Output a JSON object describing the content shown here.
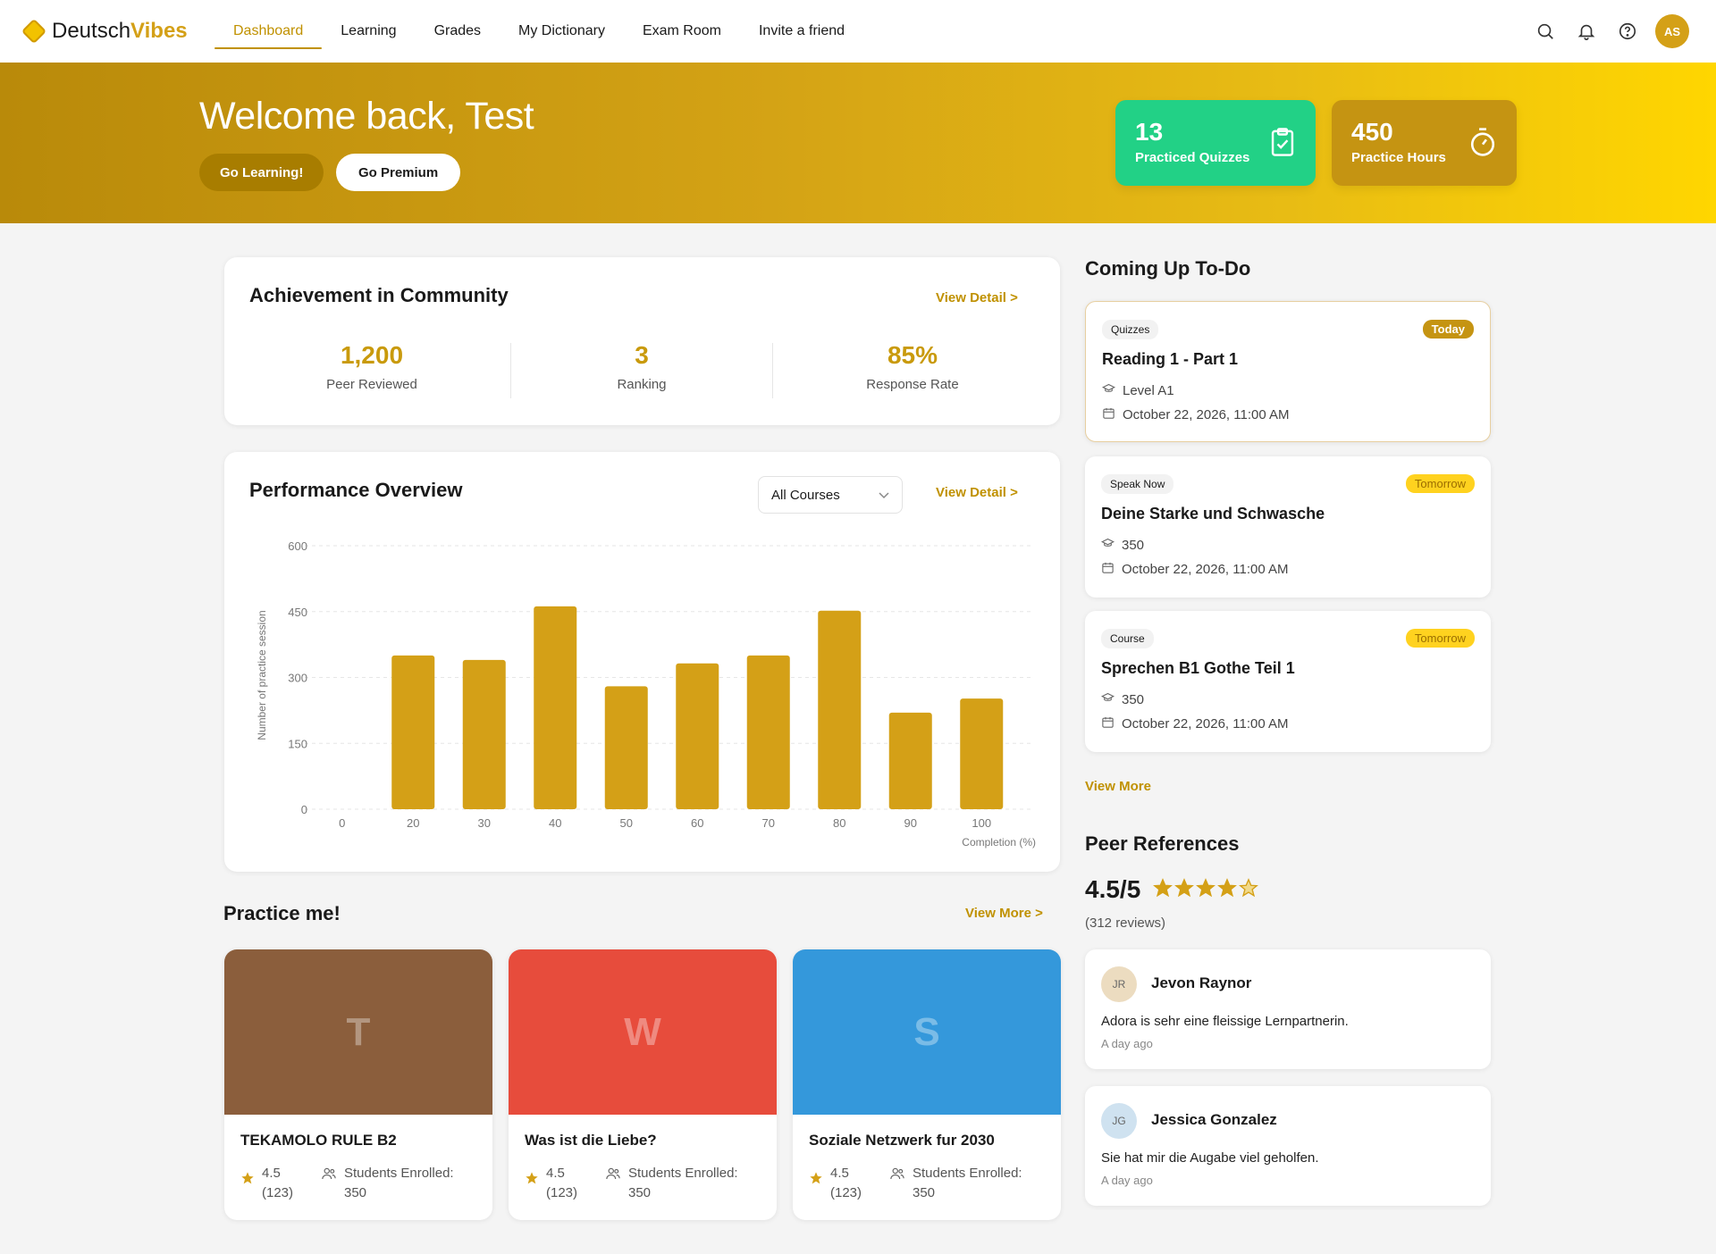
{
  "brand": {
    "part1": "Deutsch",
    "part2": "Vibes"
  },
  "nav": {
    "items": [
      {
        "label": "Dashboard",
        "active": true
      },
      {
        "label": "Learning"
      },
      {
        "label": "Grades"
      },
      {
        "label": "My Dictionary"
      },
      {
        "label": "Exam Room"
      },
      {
        "label": "Invite a friend"
      }
    ],
    "icons": [
      "search-icon",
      "bell-icon",
      "help-icon"
    ],
    "avatar": "AS"
  },
  "hero": {
    "title": "Welcome back, Test",
    "btn_learning": "Go Learning!",
    "btn_premium": "Go Premium",
    "stats": [
      {
        "value": "13",
        "label": "Practiced Quizzes",
        "icon": "clipboard-check-icon",
        "color": "#22d186"
      },
      {
        "value": "450",
        "label": "Practice Hours",
        "icon": "stopwatch-icon",
        "color": "#c59412"
      }
    ]
  },
  "achievement": {
    "title": "Achievement in Community",
    "view_detail": "View Detail >",
    "stats": [
      {
        "value": "1,200",
        "label": "Peer Reviewed"
      },
      {
        "value": "3",
        "label": "Ranking"
      },
      {
        "value": "85%",
        "label": "Response Rate"
      }
    ]
  },
  "performance": {
    "title": "Performance Overview",
    "select_value": "All Courses",
    "view_detail": "View Detail >"
  },
  "chart_data": {
    "type": "bar",
    "categories": [
      "0",
      "20",
      "30",
      "40",
      "50",
      "60",
      "70",
      "80",
      "90",
      "100"
    ],
    "values": [
      0,
      350,
      340,
      462,
      280,
      332,
      350,
      452,
      220,
      252
    ],
    "xlabel": "Completion (%)",
    "ylabel": "Number of practice session",
    "ylim": [
      0,
      600
    ],
    "yticks": [
      0,
      150,
      300,
      450,
      600
    ],
    "grid": true,
    "color": "#d4a017"
  },
  "practice": {
    "title": "Practice me!",
    "view_more": "View More >",
    "courses": [
      {
        "letter": "T",
        "name": "TEKAMOLO RULE B2",
        "rating": "4.5",
        "count": "(123)",
        "enrolled_label": "Students Enrolled:",
        "enrolled": "350",
        "color": "#8b5e3c"
      },
      {
        "letter": "W",
        "name": "Was ist die Liebe?",
        "rating": "4.5",
        "count": "(123)",
        "enrolled_label": "Students Enrolled:",
        "enrolled": "350",
        "color": "#e74c3c"
      },
      {
        "letter": "S",
        "name": "Soziale Netzwerk fur 2030",
        "rating": "4.5",
        "count": "(123)",
        "enrolled_label": "Students Enrolled:",
        "enrolled": "350",
        "color": "#3498db"
      }
    ]
  },
  "todo": {
    "title": "Coming Up To-Do",
    "view_more": "View More",
    "items": [
      {
        "tag": "Quizzes",
        "when": "Today",
        "name": "Reading 1 - Part 1",
        "detail": "Level A1",
        "date": "October 22, 2026, 11:00 AM"
      },
      {
        "tag": "Speak Now",
        "when": "Tomorrow",
        "name": "Deine Starke und Schwasche",
        "detail": "350",
        "date": "October 22, 2026, 11:00 AM"
      },
      {
        "tag": "Course",
        "when": "Tomorrow",
        "name": "Sprechen B1 Gothe Teil 1",
        "detail": "350",
        "date": "October 22, 2026, 11:00 AM"
      }
    ]
  },
  "peer": {
    "title": "Peer References",
    "rating": "4.5/5",
    "stars": 4.5,
    "reviews": "(312 reviews)",
    "items": [
      {
        "initials": "JR",
        "name": "Jevon Raynor",
        "text": "Adora is sehr eine fleissige Lernpartnerin.",
        "time": "A day ago",
        "avatar_color": "#ecdcc0"
      },
      {
        "initials": "JG",
        "name": "Jessica Gonzalez",
        "text": "Sie hat mir die Augabe viel geholfen.",
        "time": "A day ago",
        "avatar_color": "#cfe2f0"
      }
    ]
  }
}
